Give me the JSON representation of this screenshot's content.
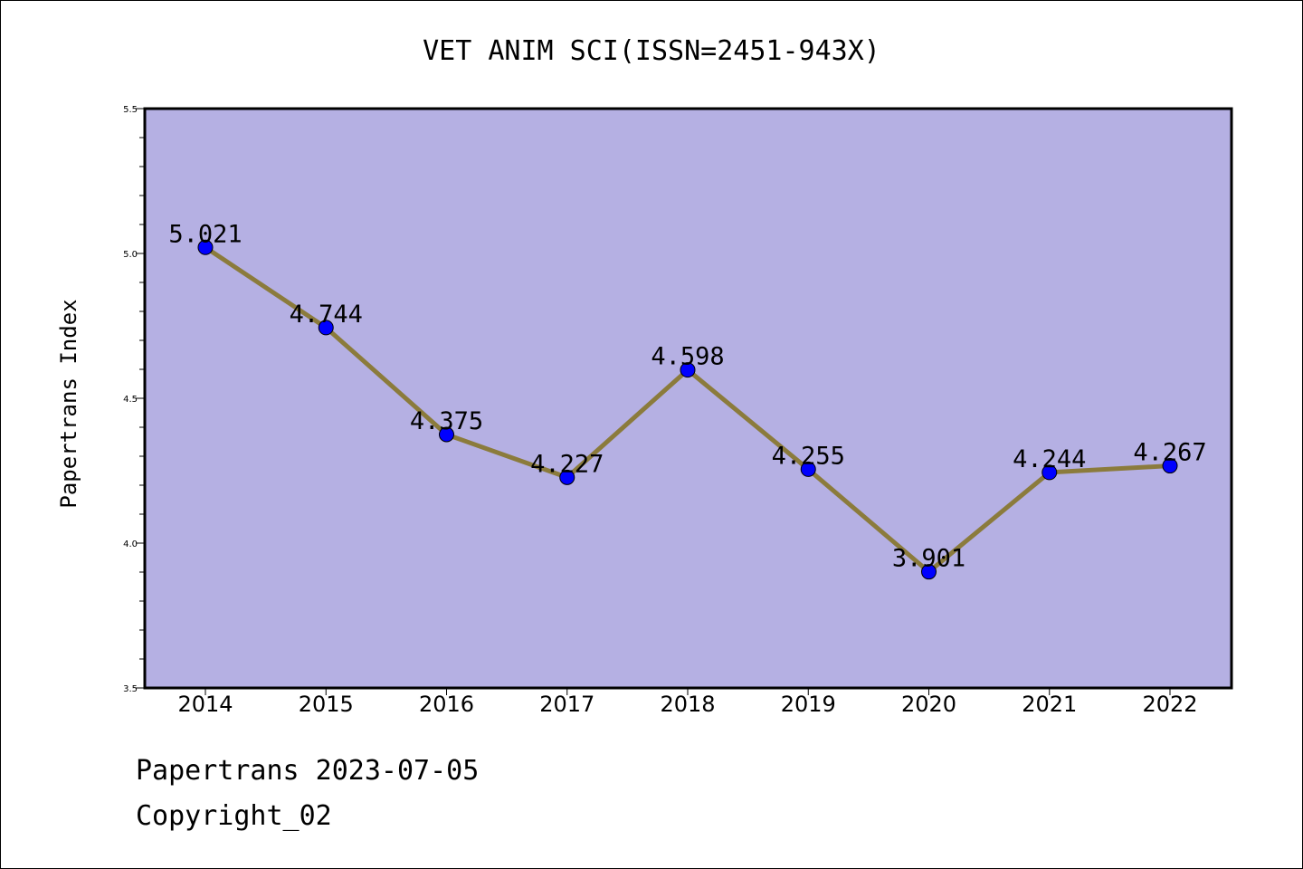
{
  "chart_data": {
    "type": "line",
    "title": "VET ANIM SCI(ISSN=2451-943X)",
    "ylabel": "Papertrans Index",
    "xlabel": "",
    "categories": [
      "2014",
      "2015",
      "2016",
      "2017",
      "2018",
      "2019",
      "2020",
      "2021",
      "2022"
    ],
    "values": [
      5.021,
      4.744,
      4.375,
      4.227,
      4.598,
      4.255,
      3.901,
      4.244,
      4.267
    ],
    "data_labels": [
      "5.021",
      "4.744",
      "4.375",
      "4.227",
      "4.598",
      "4.255",
      "3.901",
      "4.244",
      "4.267"
    ],
    "yticks": [
      "3.5",
      "4.0",
      "4.5",
      "5.0",
      "5.5"
    ],
    "ylim": [
      3.5,
      5.5
    ],
    "grid": false,
    "colors": {
      "plot_background": "#b5b0e3",
      "line": "#8b7b3c",
      "marker": "#0000ff"
    }
  },
  "footer": {
    "date_line": "Papertrans 2023-07-05",
    "copyright": "Copyright_02"
  }
}
